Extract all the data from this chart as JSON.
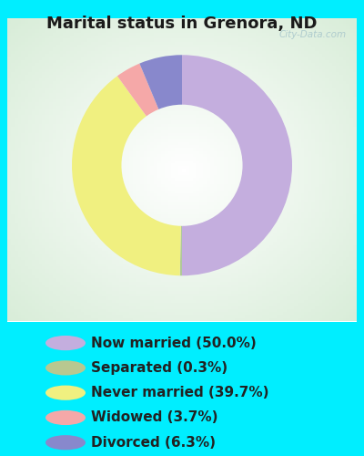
{
  "title": "Marital status in Grenora, ND",
  "title_color": "#1a1a1a",
  "title_fontsize": 13,
  "background_outer": "#00eeff",
  "slices": [
    {
      "label": "Now married (50.0%)",
      "value": 50.0,
      "color": "#c4aede"
    },
    {
      "label": "Separated (0.3%)",
      "value": 0.3,
      "color": "#b0c89a"
    },
    {
      "label": "Never married (39.7%)",
      "value": 39.7,
      "color": "#f0f080"
    },
    {
      "label": "Widowed (3.7%)",
      "value": 3.7,
      "color": "#f5a8a8"
    },
    {
      "label": "Divorced (6.3%)",
      "value": 6.3,
      "color": "#8888cc"
    }
  ],
  "legend_colors": [
    "#c4aede",
    "#b8c890",
    "#f0f080",
    "#f5a8a8",
    "#8888cc"
  ],
  "legend_fontsize": 11,
  "watermark": "City-Data.com",
  "donut_width": 0.45
}
